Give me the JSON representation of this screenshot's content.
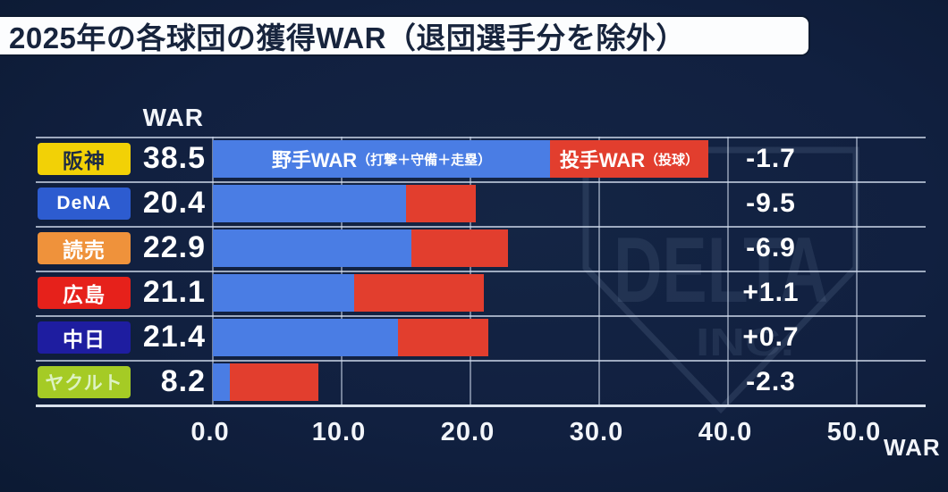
{
  "title": "2025年の各球団の獲得WAR（退団選手分を除外）",
  "war_column_header": "WAR",
  "legend": {
    "fielder_label": "野手WAR",
    "fielder_sublabel": "（打撃＋守備＋走塁）",
    "pitcher_label": "投手WAR",
    "pitcher_sublabel": "（投球）"
  },
  "axis": {
    "ticks": [
      "0.0",
      "10.0",
      "20.0",
      "30.0",
      "40.0",
      "50.0"
    ],
    "unit_label": "WAR"
  },
  "colors": {
    "background": "#112040",
    "fielder_bar": "#4a7de4",
    "pitcher_bar": "#e23e2e",
    "grid_line": "#cdd8e9",
    "title_bar_bg": "#fcfdfe",
    "title_text": "#17243d"
  },
  "watermark": {
    "line1": "DELTA",
    "line2": "INC."
  },
  "chart_data": {
    "type": "bar",
    "orientation": "horizontal",
    "stacked": true,
    "title": "2025年の各球団の獲得WAR（退団選手分を除外）",
    "xlabel": "WAR",
    "xlim": [
      0,
      50
    ],
    "x_ticks": [
      0,
      10,
      20,
      30,
      40,
      50
    ],
    "series_labels": [
      "野手WAR（打撃＋守備＋走塁）",
      "投手WAR（投球）"
    ],
    "teams": [
      {
        "name": "阪神",
        "badge_bg": "#f2d106",
        "badge_text_color": "#1d2b44",
        "total_war": "38.5",
        "fielder_war": 26.2,
        "pitcher_war": 12.3,
        "diff": "-1.7"
      },
      {
        "name": "DeNA",
        "badge_bg": "#2d5cd0",
        "badge_text_color": "#ffffff",
        "total_war": "20.4",
        "fielder_war": 15.0,
        "pitcher_war": 5.4,
        "diff": "-9.5"
      },
      {
        "name": "読売",
        "badge_bg": "#ef923b",
        "badge_text_color": "#ffffff",
        "total_war": "22.9",
        "fielder_war": 15.4,
        "pitcher_war": 7.5,
        "diff": "-6.9"
      },
      {
        "name": "広島",
        "badge_bg": "#e6211b",
        "badge_text_color": "#ffffff",
        "total_war": "21.1",
        "fielder_war": 11.0,
        "pitcher_war": 10.1,
        "diff": "+1.1"
      },
      {
        "name": "中日",
        "badge_bg": "#1e1da0",
        "badge_text_color": "#ffffff",
        "total_war": "21.4",
        "fielder_war": 14.4,
        "pitcher_war": 7.0,
        "diff": "+0.7"
      },
      {
        "name": "ヤクルト",
        "badge_bg": "#a5cb25",
        "badge_text_color": "#ddf2c2",
        "total_war": "8.2",
        "fielder_war": 1.3,
        "pitcher_war": 6.9,
        "diff": "-2.3"
      }
    ]
  }
}
